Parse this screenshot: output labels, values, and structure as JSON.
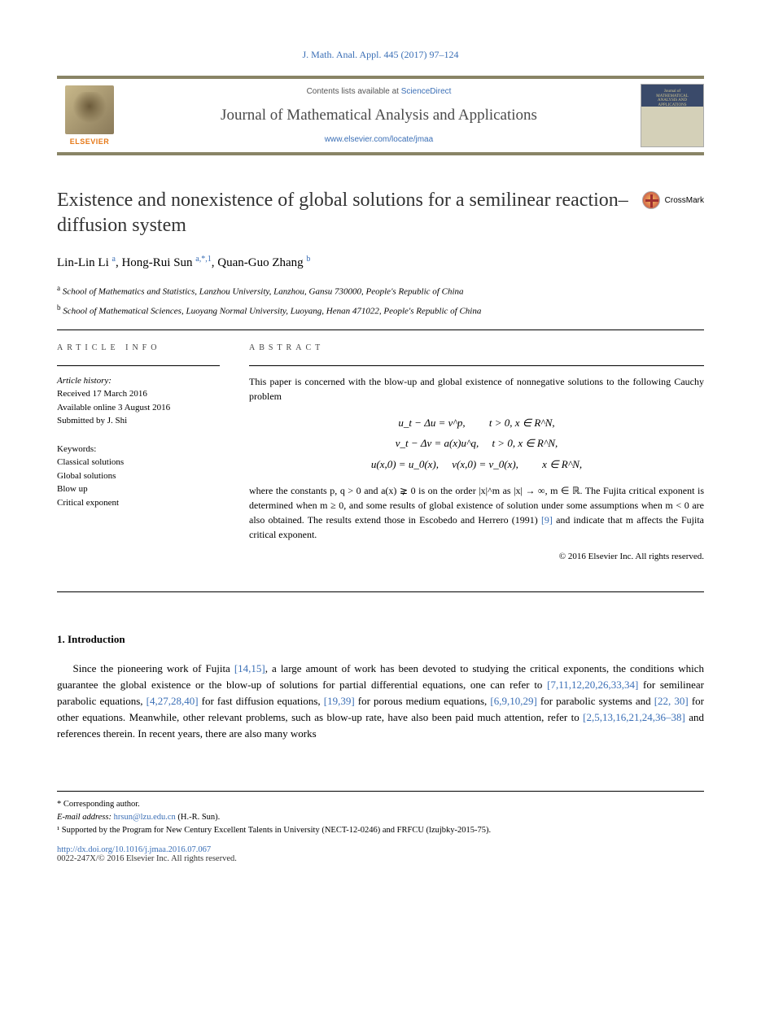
{
  "citation": "J. Math. Anal. Appl. 445 (2017) 97–124",
  "header": {
    "contents_prefix": "Contents lists available at ",
    "contents_link": "ScienceDirect",
    "journal_name": "Journal of Mathematical Analysis and Applications",
    "journal_url": "www.elsevier.com/locate/jmaa",
    "publisher": "ELSEVIER",
    "cover_title": "Journal of MATHEMATICAL ANALYSIS AND APPLICATIONS"
  },
  "colors": {
    "link": "#3b6fb6",
    "band_border": "#898466",
    "elsevier_orange": "#e67817",
    "text": "#000000",
    "title_gray": "#333333"
  },
  "article": {
    "title": "Existence and nonexistence of global solutions for a semilinear reaction–diffusion system",
    "crossmark": "CrossMark"
  },
  "authors": [
    {
      "name": "Lin-Lin Li",
      "marks": "a"
    },
    {
      "name": "Hong-Rui Sun",
      "marks": "a,*,1"
    },
    {
      "name": "Quan-Guo Zhang",
      "marks": "b"
    }
  ],
  "affiliations": [
    {
      "mark": "a",
      "text": "School of Mathematics and Statistics, Lanzhou University, Lanzhou, Gansu 730000, People's Republic of China"
    },
    {
      "mark": "b",
      "text": "School of Mathematical Sciences, Luoyang Normal University, Luoyang, Henan 471022, People's Republic of China"
    }
  ],
  "info": {
    "label": "article info",
    "history_label": "Article history:",
    "history": [
      "Received 17 March 2016",
      "Available online 3 August 2016",
      "Submitted by J. Shi"
    ],
    "keywords_label": "Keywords:",
    "keywords": [
      "Classical solutions",
      "Global solutions",
      "Blow up",
      "Critical exponent"
    ]
  },
  "abstract": {
    "label": "abstract",
    "intro": "This paper is concerned with the blow-up and global existence of nonnegative solutions to the following Cauchy problem",
    "equations": [
      "u_t − Δu = v^p,   t > 0, x ∈ R^N,",
      "v_t − Δv = a(x)u^q,  t > 0, x ∈ R^N,",
      "u(x,0) = u_0(x),  v(x,0) = v_0(x),   x ∈ R^N,"
    ],
    "tail_1": "where the constants p, q > 0 and a(x) ⪈ 0 is on the order |x|^m as |x| → ∞, m ∈ ℝ. The Fujita critical exponent is determined when m ≥ 0, and some results of global existence of solution under some assumptions when m < 0 are also obtained. The results extend those in Escobedo and Herrero (1991) ",
    "tail_ref": "[9]",
    "tail_2": " and indicate that m affects the Fujita critical exponent.",
    "copyright": "© 2016 Elsevier Inc. All rights reserved."
  },
  "body": {
    "section_number": "1.",
    "section_title": "Introduction",
    "paragraph_parts": [
      {
        "t": "text",
        "v": "Since the pioneering work of Fujita "
      },
      {
        "t": "ref",
        "v": "[14,15]"
      },
      {
        "t": "text",
        "v": ", a large amount of work has been devoted to studying the critical exponents, the conditions which guarantee the global existence or the blow-up of solutions for partial differential equations, one can refer to "
      },
      {
        "t": "ref",
        "v": "[7,11,12,20,26,33,34]"
      },
      {
        "t": "text",
        "v": " for semilinear parabolic equations, "
      },
      {
        "t": "ref",
        "v": "[4,27,28,40]"
      },
      {
        "t": "text",
        "v": " for fast diffusion equations, "
      },
      {
        "t": "ref",
        "v": "[19,39]"
      },
      {
        "t": "text",
        "v": " for porous medium equations, "
      },
      {
        "t": "ref",
        "v": "[6,9,10,29]"
      },
      {
        "t": "text",
        "v": " for parabolic systems and "
      },
      {
        "t": "ref",
        "v": "[22, 30]"
      },
      {
        "t": "text",
        "v": " for other equations. Meanwhile, other relevant problems, such as blow-up rate, have also been paid much attention, refer to "
      },
      {
        "t": "ref",
        "v": "[2,5,13,16,21,24,36–38]"
      },
      {
        "t": "text",
        "v": " and references therein. In recent years, there are also many works"
      }
    ]
  },
  "footnotes": {
    "corresponding": "* Corresponding author.",
    "email_label": "E-mail address: ",
    "email": "hrsun@lzu.edu.cn",
    "email_who": " (H.-R. Sun).",
    "funding": "¹ Supported by the Program for New Century Excellent Talents in University (NECT-12-0246) and FRFCU (lzujbky-2015-75)."
  },
  "doi": "http://dx.doi.org/10.1016/j.jmaa.2016.07.067",
  "bottom_copy": "0022-247X/© 2016 Elsevier Inc. All rights reserved."
}
